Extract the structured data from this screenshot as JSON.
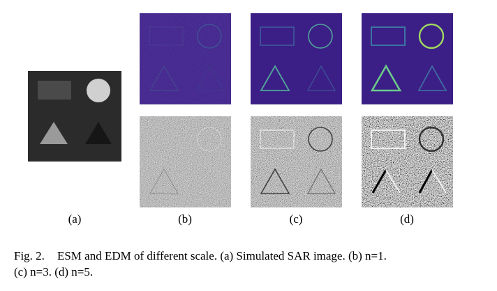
{
  "figure": {
    "labels": {
      "a": "(a)",
      "b": "(b)",
      "c": "(c)",
      "d": "(d)"
    },
    "caption_prefix": "Fig. 2.",
    "caption_line1": "ESM and EDM of different scale. (a) Simulated SAR image. (b) n=1.",
    "caption_line2": "(c) n=3. (d) n=5."
  },
  "colors": {
    "esm_background": "#3b1f86",
    "sar_background": "#2b2b2b"
  }
}
